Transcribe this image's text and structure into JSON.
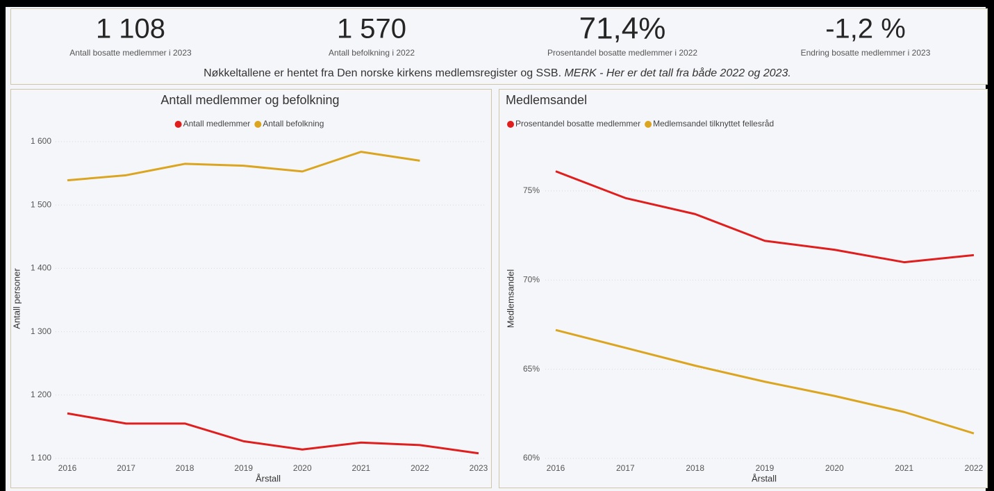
{
  "kpis": [
    {
      "value": "1 108",
      "label": "Antall bosatte medlemmer i 2023"
    },
    {
      "value": "1 570",
      "label": "Antall befolkning i 2022"
    },
    {
      "value": "71,4%",
      "label": "Prosentandel bosatte medlemmer i 2022"
    },
    {
      "value": "-1,2 %",
      "label": "Endring bosatte medlemmer i 2023"
    }
  ],
  "note": {
    "text": "Nøkkeltallene er hentet fra Den norske kirkens medlemsregister og SSB.",
    "emphasis": "MERK - Her er det tall fra både 2022 og 2023."
  },
  "chart_data": [
    {
      "type": "line",
      "title": "Antall medlemmer og befolkning",
      "x_label": "Årstall",
      "y_label": "Antall personer",
      "x": [
        2016,
        2017,
        2018,
        2019,
        2020,
        2021,
        2022,
        2023
      ],
      "xlim": [
        2016,
        2023
      ],
      "xticks": [
        2016,
        2017,
        2018,
        2019,
        2020,
        2021,
        2022,
        2023
      ],
      "ylim": [
        1100,
        1600
      ],
      "yticks": [
        {
          "value": 1100,
          "label": "1 100"
        },
        {
          "value": 1200,
          "label": "1 200"
        },
        {
          "value": 1300,
          "label": "1 300"
        },
        {
          "value": 1400,
          "label": "1 400"
        },
        {
          "value": 1500,
          "label": "1 500"
        },
        {
          "value": 1600,
          "label": "1 600"
        }
      ],
      "grid": true,
      "legend": "top-center",
      "series": [
        {
          "name": "Antall medlemmer",
          "color": "#e01e1e",
          "values": [
            1171,
            1155,
            1155,
            1127,
            1114,
            1125,
            1121,
            1108
          ]
        },
        {
          "name": "Antall befolkning",
          "color": "#dba520",
          "values": [
            1539,
            1547,
            1565,
            1562,
            1553,
            1584,
            1570,
            null
          ]
        }
      ]
    },
    {
      "type": "line",
      "title": "Medlemsandel",
      "x_label": "Årstall",
      "y_label": "Medlemsandel",
      "x": [
        2016,
        2017,
        2018,
        2019,
        2020,
        2021,
        2022
      ],
      "xlim": [
        2016,
        2022
      ],
      "xticks": [
        2016,
        2017,
        2018,
        2019,
        2020,
        2021,
        2022
      ],
      "ylim": [
        60,
        77.8
      ],
      "yticks": [
        {
          "value": 60,
          "label": "60%"
        },
        {
          "value": 65,
          "label": "65%"
        },
        {
          "value": 70,
          "label": "70%"
        },
        {
          "value": 75,
          "label": "75%"
        }
      ],
      "grid": true,
      "legend": "top-left",
      "series": [
        {
          "name": "Prosentandel bosatte medlemmer",
          "color": "#e01e1e",
          "values": [
            76.1,
            74.6,
            73.7,
            72.2,
            71.7,
            71.0,
            71.4
          ]
        },
        {
          "name": "Medlemsandel tilknyttet fellesråd",
          "color": "#dba520",
          "values": [
            67.2,
            66.2,
            65.2,
            64.3,
            63.5,
            62.6,
            61.4
          ]
        }
      ]
    }
  ]
}
